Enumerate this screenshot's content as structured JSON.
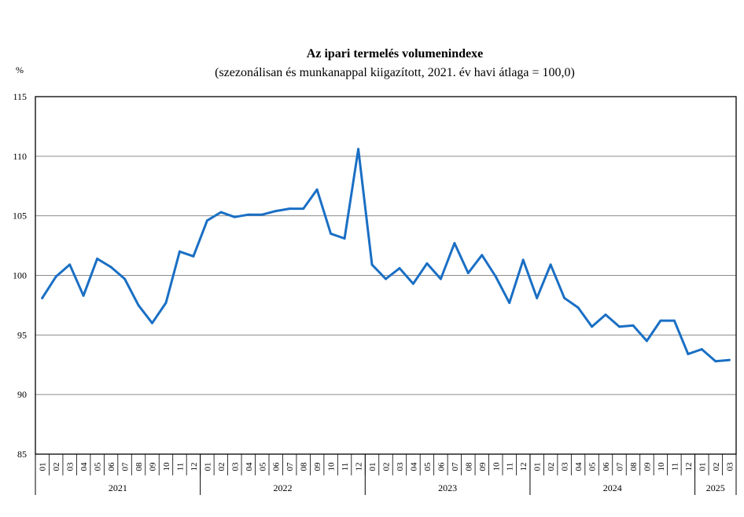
{
  "chart_data": {
    "type": "line",
    "title": "Az ipari termelés volumenindexe",
    "subtitle": "(szezonálisan és munkanappal kiigazított, 2021. év havi átlaga = 100,0)",
    "ylabel": "%",
    "xlabel": "",
    "ylim": [
      85,
      115
    ],
    "yticks": [
      "85",
      "90",
      "95",
      "100",
      "105",
      "110",
      "115"
    ],
    "grid": true,
    "legend": "none",
    "line_color": "#1a6fc4",
    "years": [
      {
        "label": "2021",
        "months": 12
      },
      {
        "label": "2022",
        "months": 12
      },
      {
        "label": "2023",
        "months": 12
      },
      {
        "label": "2024",
        "months": 12
      },
      {
        "label": "2025",
        "months": 3
      }
    ],
    "months": [
      "01",
      "02",
      "03",
      "04",
      "05",
      "06",
      "07",
      "08",
      "09",
      "10",
      "11",
      "12",
      "01",
      "02",
      "03",
      "04",
      "05",
      "06",
      "07",
      "08",
      "09",
      "10",
      "11",
      "12",
      "01",
      "02",
      "03",
      "04",
      "05",
      "06",
      "07",
      "08",
      "09",
      "10",
      "11",
      "12",
      "01",
      "02",
      "03",
      "04",
      "05",
      "06",
      "07",
      "08",
      "09",
      "10",
      "11",
      "12",
      "01",
      "02",
      "03"
    ],
    "series": [
      {
        "values": [
          98.1,
          99.9,
          100.9,
          98.3,
          101.4,
          100.7,
          99.7,
          97.5,
          96.0,
          97.7,
          102.0,
          101.6,
          104.6,
          105.3,
          104.9,
          105.1,
          105.1,
          105.4,
          105.6,
          105.6,
          107.2,
          103.5,
          103.1,
          110.6,
          100.9,
          99.7,
          100.6,
          99.3,
          101.0,
          99.7,
          102.7,
          100.2,
          101.7,
          99.9,
          97.7,
          101.3,
          98.1,
          100.9,
          98.1,
          97.3,
          95.7,
          96.7,
          95.7,
          95.8,
          94.5,
          96.2,
          96.2,
          93.4,
          93.8,
          92.8,
          92.9
        ]
      }
    ]
  }
}
